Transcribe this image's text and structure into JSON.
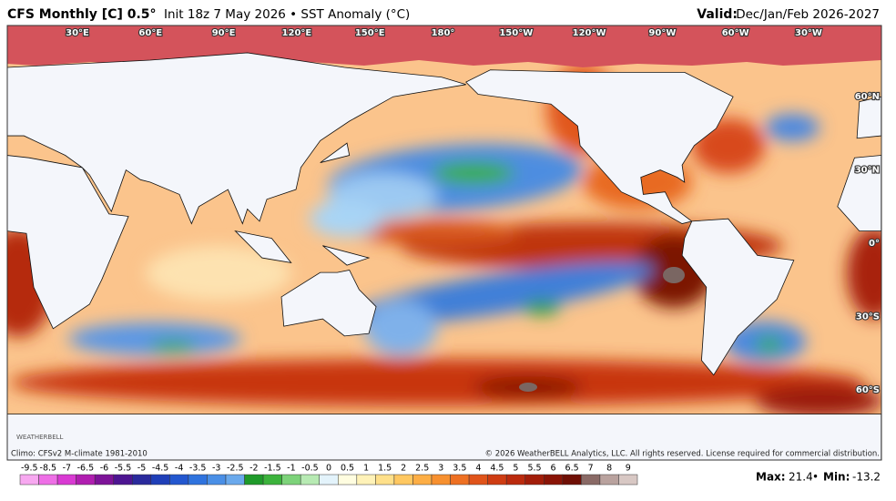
{
  "header": {
    "model": "CFS Monthly [C] 0.5°",
    "detail": "Init 18z 7 May 2026 • SST Anomaly (°C)",
    "valid_label": "Valid:",
    "valid_value": "Dec/Jan/Feb 2026-2027"
  },
  "map": {
    "longitudes": [
      "30°E",
      "60°E",
      "90°E",
      "120°E",
      "150°E",
      "180°",
      "150°W",
      "120°W",
      "90°W",
      "60°W",
      "30°W"
    ],
    "latitudes": [
      "60°N",
      "30°N",
      "0°",
      "30°S",
      "60°S"
    ],
    "logo": "WEATHERBELL"
  },
  "footer": {
    "climo": "Climo: CFSv2 M-climate 1981-2010",
    "copyright": "© 2026 WeatherBELL Analytics, LLC. All rights reserved. License required for commercial distribution.",
    "max_label": "Max:",
    "max": 21.4,
    "min_label": "Min:",
    "min": -13.2
  },
  "colorbar": {
    "labels": [
      -9.5,
      -8.5,
      -7,
      -6.5,
      -6,
      -5.5,
      -5,
      -4.5,
      -4,
      -3.5,
      -3,
      -2.5,
      -2,
      -1.5,
      -1,
      -0.5,
      0,
      0.5,
      1,
      1.5,
      2,
      2.5,
      3,
      3.5,
      4,
      4.5,
      5,
      5.5,
      6,
      6.5,
      7,
      8,
      9
    ],
    "colors": [
      "#f7a8f0",
      "#ee6fe6",
      "#d93ad3",
      "#b01eb0",
      "#7d1398",
      "#4d1591",
      "#2a2a9c",
      "#1f3fb8",
      "#2357cf",
      "#2f73de",
      "#4a8fe6",
      "#6aa9ec",
      "#1f9a2a",
      "#3cb33c",
      "#7dd37a",
      "#b7eab3",
      "#e3f3fb",
      "#fffde0",
      "#fff2b8",
      "#ffe08a",
      "#ffc861",
      "#fdae45",
      "#f7902f",
      "#ee7022",
      "#e0541a",
      "#cf3c12",
      "#bb2a0d",
      "#a21d09",
      "#8a1406",
      "#6f0f05",
      "#8a6a66",
      "#b9a29e",
      "#d8c8c4"
    ]
  }
}
